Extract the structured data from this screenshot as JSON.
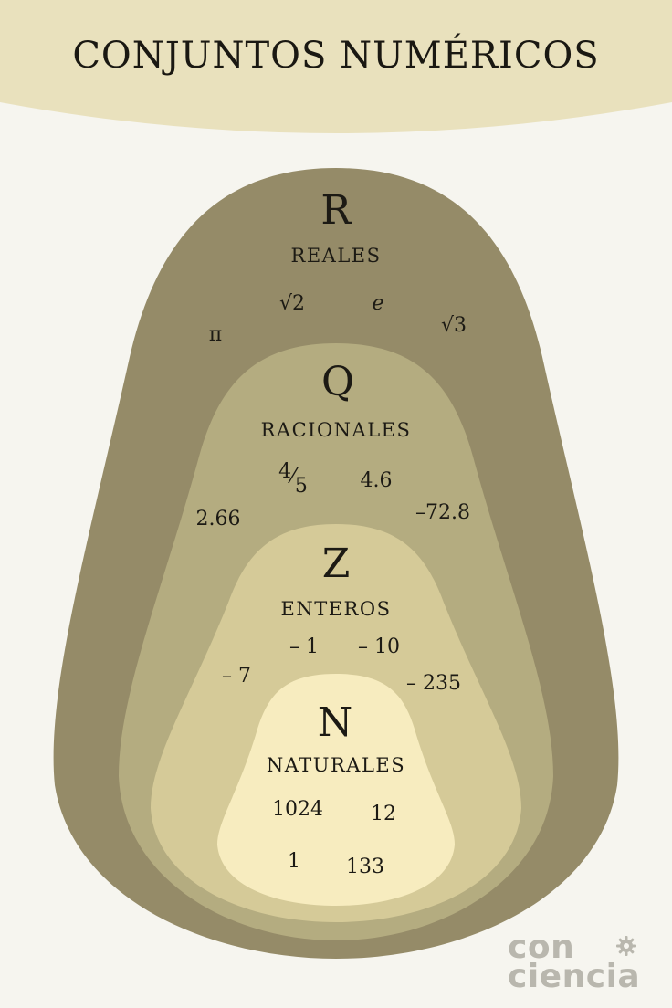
{
  "title": "CONJUNTOS NUMÉRICOS",
  "colors": {
    "background": "#f6f5ef",
    "header_band": "#e9e1bd",
    "reales": "#958b68",
    "racionales": "#b4ac80",
    "enteros": "#d5ca98",
    "naturales": "#f7ecbf",
    "logo": "#b9b7ae"
  },
  "sets": {
    "reales": {
      "symbol": "R",
      "name": "REALES",
      "examples": [
        "√2",
        "e",
        "π",
        "√3"
      ]
    },
    "racionales": {
      "symbol": "Q",
      "name": "RACIONALES",
      "fraction": {
        "numerator": "4",
        "denominator": "5"
      },
      "examples": [
        "4.6",
        "2.66",
        "–72.8"
      ]
    },
    "enteros": {
      "symbol": "Z",
      "name": "ENTEROS",
      "examples": [
        "– 1",
        "– 10",
        "– 7",
        "– 235"
      ]
    },
    "naturales": {
      "symbol": "N",
      "name": "NATURALES",
      "examples": [
        "1024",
        "12",
        "1",
        "133"
      ]
    }
  },
  "logo": {
    "line1": "con",
    "line2": "ciencia",
    "icon": "gear-icon"
  }
}
